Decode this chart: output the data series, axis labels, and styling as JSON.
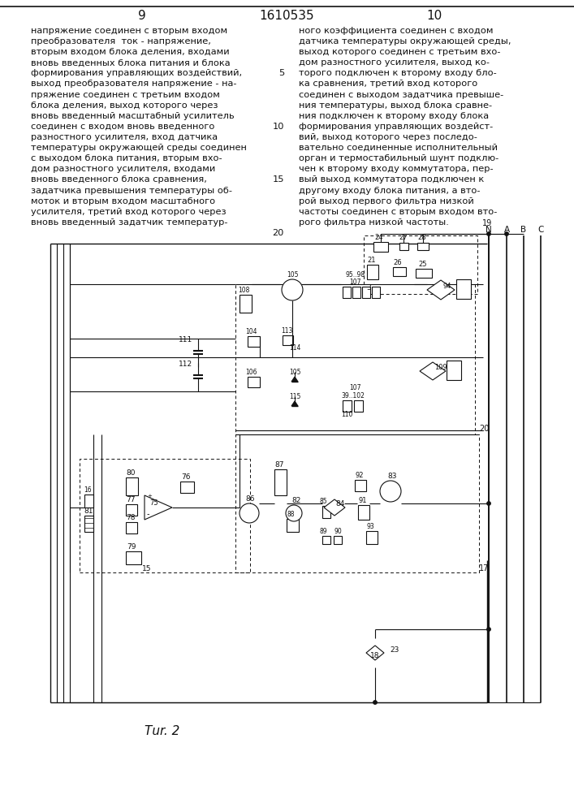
{
  "page_left": "9",
  "page_center": "1610535",
  "page_right": "10",
  "left_text": [
    "напряжение соединен с вторым входом",
    "преобразователя  ток - напряжение,",
    "вторым входом блока деления, входами",
    "вновь введенных блока питания и блока",
    "формирования управляющих воздействий,",
    "выход преобразователя напряжение - на-",
    "пряжение соединен с третьим входом",
    "блока деления, выход которого через",
    "вновь введенный масштабный усилитель",
    "соединен с входом вновь введенного",
    "разностного усилителя, вход датчика",
    "температуры окружающей среды соединен",
    "с выходом блока питания, вторым вхо-",
    "дом разностного усилителя, входами",
    "вновь введенного блока сравнения,",
    "задатчика превышения температуры об-",
    "моток и вторым входом масштабного",
    "усилителя, третий вход которого через",
    "вновь введенный задатчик температур-"
  ],
  "right_text": [
    "ного коэффициента соединен с входом",
    "датчика температуры окружающей среды,",
    "выход которого соединен с третьим вхо-",
    "дом разностного усилителя, выход ко-",
    "торого подключен к второму входу бло-",
    "ка сравнения, третий вход которого",
    "соединен с выходом задатчика превыше-",
    "ния температуры, выход блока сравне-",
    "ния подключен к второму входу блока",
    "формирования управляющих воздейст-",
    "вий, выход которого через последо-",
    "вательно соединенные исполнительный",
    "орган и термостабильный шунт подклю-",
    "чен к второму входу коммутатора, пер-",
    "вый выход коммутатора подключен к",
    "другому входу блока питания, а вто-",
    "рой выход первого фильтра низкой",
    "частоты соединен с вторым входом вто-",
    "рого фильтра низкой частоты."
  ],
  "fig_label": "Τur. 2",
  "bg": "#ffffff",
  "ink": "#111111"
}
